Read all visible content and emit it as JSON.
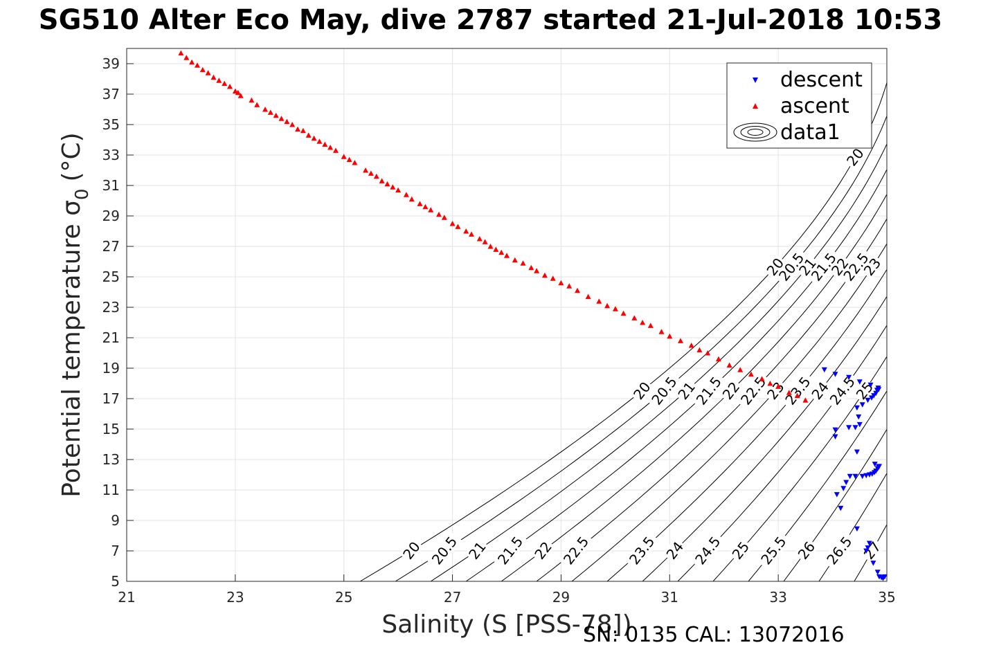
{
  "header": {
    "title": "SG510 Alter Eco May, dive 2787 started 21-Jul-2018 10:53"
  },
  "footer": {
    "sn_text": "SN: 0135  CAL: 13072016"
  },
  "chart_data": {
    "type": "scatter",
    "xlabel": "Salinity (S [PSS-78])",
    "ylabel": "Potential temperature σ",
    "ylabel_subscript": "0",
    "ylabel_unit": "(°C)",
    "xlim": [
      21,
      35
    ],
    "ylim": [
      5,
      40
    ],
    "x_ticks": [
      21,
      23,
      25,
      27,
      29,
      31,
      33,
      35
    ],
    "y_ticks": [
      5,
      7,
      9,
      11,
      13,
      15,
      17,
      19,
      21,
      23,
      25,
      27,
      29,
      31,
      33,
      35,
      37,
      39
    ],
    "grid": true,
    "legend_position": "top-right",
    "legend": [
      "descent",
      "ascent",
      "data1"
    ],
    "series": [
      {
        "name": "descent",
        "marker": "triangle-down",
        "color": "#0000ff",
        "points": [
          [
            33.85,
            18.9
          ],
          [
            34.05,
            18.6
          ],
          [
            34.3,
            18.4
          ],
          [
            34.5,
            18.1
          ],
          [
            34.7,
            17.9
          ],
          [
            34.55,
            16.6
          ],
          [
            34.65,
            16.9
          ],
          [
            34.72,
            17.05
          ],
          [
            34.76,
            17.2
          ],
          [
            34.8,
            17.35
          ],
          [
            34.82,
            17.55
          ],
          [
            34.84,
            17.7
          ],
          [
            34.85,
            17.6
          ],
          [
            34.45,
            16.4
          ],
          [
            34.48,
            15.8
          ],
          [
            34.5,
            15.3
          ],
          [
            34.42,
            15.1
          ],
          [
            34.3,
            15.1
          ],
          [
            34.05,
            14.95
          ],
          [
            34.05,
            14.5
          ],
          [
            34.45,
            13.5
          ],
          [
            34.55,
            11.9
          ],
          [
            34.62,
            11.95
          ],
          [
            34.68,
            12.0
          ],
          [
            34.73,
            12.05
          ],
          [
            34.77,
            12.15
          ],
          [
            34.8,
            12.25
          ],
          [
            34.83,
            12.4
          ],
          [
            34.85,
            12.5
          ],
          [
            34.86,
            12.55
          ],
          [
            34.78,
            12.7
          ],
          [
            34.42,
            11.9
          ],
          [
            34.32,
            11.9
          ],
          [
            34.25,
            11.5
          ],
          [
            34.2,
            11.1
          ],
          [
            34.08,
            10.7
          ],
          [
            34.15,
            9.8
          ],
          [
            34.45,
            8.45
          ],
          [
            34.68,
            7.5
          ],
          [
            34.65,
            7.2
          ],
          [
            34.62,
            7.0
          ],
          [
            34.75,
            6.2
          ],
          [
            34.83,
            5.6
          ],
          [
            34.86,
            5.3
          ],
          [
            34.9,
            5.25
          ],
          [
            34.93,
            5.2
          ],
          [
            34.96,
            5.3
          ]
        ]
      },
      {
        "name": "ascent",
        "marker": "triangle-up",
        "color": "#ff0000",
        "points": [
          [
            22.0,
            39.7
          ],
          [
            22.1,
            39.4
          ],
          [
            22.2,
            39.1
          ],
          [
            22.3,
            38.9
          ],
          [
            22.4,
            38.6
          ],
          [
            22.5,
            38.4
          ],
          [
            22.6,
            38.1
          ],
          [
            22.7,
            37.9
          ],
          [
            22.8,
            37.7
          ],
          [
            22.9,
            37.5
          ],
          [
            23.0,
            37.2
          ],
          [
            23.05,
            37.1
          ],
          [
            23.1,
            36.9
          ],
          [
            23.3,
            36.6
          ],
          [
            23.4,
            36.3
          ],
          [
            23.55,
            36.0
          ],
          [
            23.65,
            35.8
          ],
          [
            23.75,
            35.6
          ],
          [
            23.85,
            35.4
          ],
          [
            23.95,
            35.2
          ],
          [
            24.05,
            35.0
          ],
          [
            24.15,
            34.7
          ],
          [
            24.25,
            34.6
          ],
          [
            24.35,
            34.3
          ],
          [
            24.45,
            34.1
          ],
          [
            24.55,
            33.9
          ],
          [
            24.65,
            33.7
          ],
          [
            24.75,
            33.5
          ],
          [
            24.85,
            33.3
          ],
          [
            25.0,
            32.9
          ],
          [
            25.1,
            32.7
          ],
          [
            25.2,
            32.5
          ],
          [
            25.4,
            32.0
          ],
          [
            25.5,
            31.8
          ],
          [
            25.6,
            31.6
          ],
          [
            25.7,
            31.3
          ],
          [
            25.8,
            31.1
          ],
          [
            25.9,
            30.9
          ],
          [
            26.0,
            30.7
          ],
          [
            26.15,
            30.4
          ],
          [
            26.25,
            30.1
          ],
          [
            26.4,
            29.8
          ],
          [
            26.5,
            29.6
          ],
          [
            26.6,
            29.4
          ],
          [
            26.75,
            29.1
          ],
          [
            26.85,
            28.9
          ],
          [
            27.0,
            28.5
          ],
          [
            27.1,
            28.3
          ],
          [
            27.25,
            28.0
          ],
          [
            27.35,
            27.8
          ],
          [
            27.5,
            27.5
          ],
          [
            27.6,
            27.3
          ],
          [
            27.7,
            27.0
          ],
          [
            27.8,
            26.8
          ],
          [
            27.9,
            26.6
          ],
          [
            28.0,
            26.4
          ],
          [
            28.15,
            26.1
          ],
          [
            28.3,
            25.9
          ],
          [
            28.45,
            25.6
          ],
          [
            28.55,
            25.4
          ],
          [
            28.7,
            25.1
          ],
          [
            28.85,
            24.9
          ],
          [
            29.0,
            24.6
          ],
          [
            29.15,
            24.4
          ],
          [
            29.3,
            24.1
          ],
          [
            29.5,
            23.7
          ],
          [
            29.7,
            23.4
          ],
          [
            29.85,
            23.1
          ],
          [
            30.0,
            22.9
          ],
          [
            30.15,
            22.6
          ],
          [
            30.35,
            22.3
          ],
          [
            30.5,
            22.0
          ],
          [
            30.65,
            21.8
          ],
          [
            30.85,
            21.4
          ],
          [
            31.0,
            21.1
          ],
          [
            31.2,
            20.8
          ],
          [
            31.4,
            20.5
          ],
          [
            31.55,
            20.2
          ],
          [
            31.7,
            20.0
          ],
          [
            31.9,
            19.6
          ],
          [
            32.1,
            19.2
          ],
          [
            32.3,
            18.9
          ],
          [
            32.5,
            18.6
          ],
          [
            32.7,
            18.3
          ],
          [
            32.85,
            18.0
          ],
          [
            33.0,
            17.8
          ],
          [
            33.2,
            17.4
          ],
          [
            33.35,
            17.2
          ],
          [
            33.5,
            16.9
          ]
        ]
      }
    ],
    "contours": {
      "levels": [
        20,
        20.5,
        21,
        21.5,
        22,
        22.5,
        23,
        23.5,
        24,
        24.5,
        25,
        25.5,
        26,
        26.5,
        27
      ],
      "bottom_labels": [
        "20",
        "20.5",
        "21",
        "21.5",
        "22",
        "22.5",
        "23.5",
        "24",
        "24.5",
        "25",
        "25.5",
        "26",
        "26.5",
        "27"
      ],
      "middle_labels": [
        "20",
        "20.5",
        "21",
        "21.5",
        "22",
        "22.5",
        "23",
        "23.5",
        "24",
        "24.5",
        "25"
      ],
      "upper_labels": [
        "20",
        "20.5",
        "21",
        "21.5",
        "22",
        "22.5",
        "23"
      ],
      "top_labels": [
        "20"
      ]
    }
  }
}
